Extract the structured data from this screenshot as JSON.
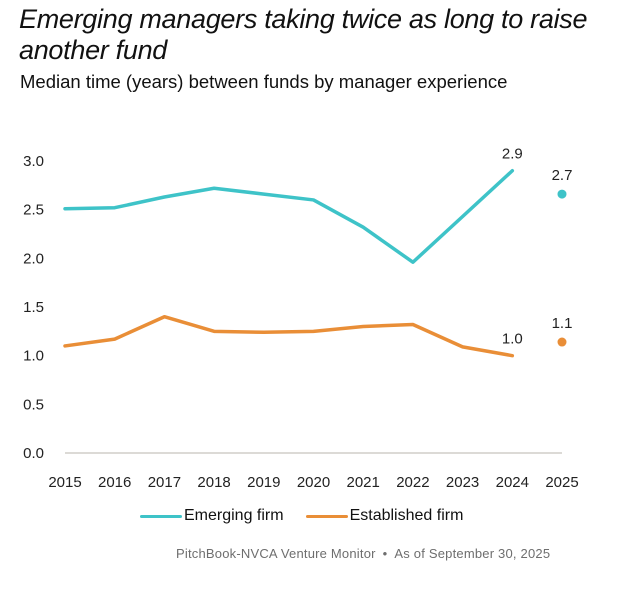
{
  "header": {
    "title": "Emerging managers taking twice as long to raise another fund",
    "subtitle": "Median time (years) between funds by manager experience"
  },
  "footer": {
    "source": "PitchBook-NVCA Venture Monitor",
    "separator": "•",
    "as_of": "As of September 30, 2025"
  },
  "colors": {
    "emerging": "#3EC3C8",
    "established": "#E98E37",
    "axis": "#b9b4ac"
  },
  "chart_data": {
    "type": "line",
    "title": "Emerging managers taking twice as long to raise another fund",
    "subtitle": "Median time (years) between funds by manager experience",
    "xlabel": "",
    "ylabel": "",
    "categories": [
      "2015",
      "2016",
      "2017",
      "2018",
      "2019",
      "2020",
      "2021",
      "2022",
      "2023",
      "2024",
      "2025"
    ],
    "yticks": [
      "0.0",
      "0.5",
      "1.0",
      "1.5",
      "2.0",
      "2.5",
      "3.0"
    ],
    "ylim": [
      0,
      3.0
    ],
    "grid": false,
    "legend_position": "bottom",
    "series": [
      {
        "name": "Emerging firm",
        "color": "#3EC3C8",
        "values": [
          2.51,
          2.52,
          2.63,
          2.72,
          2.66,
          2.6,
          2.32,
          1.96,
          2.43,
          2.9,
          2.66
        ],
        "line_through": 10,
        "standalone_point_index": 10,
        "data_labels": [
          {
            "index": 9,
            "text": "2.9"
          },
          {
            "index": 10,
            "text": "2.7"
          }
        ]
      },
      {
        "name": "Established firm",
        "color": "#E98E37",
        "values": [
          1.1,
          1.17,
          1.4,
          1.25,
          1.24,
          1.25,
          1.3,
          1.32,
          1.09,
          1.0,
          1.14
        ],
        "line_through": 10,
        "standalone_point_index": 10,
        "data_labels": [
          {
            "index": 9,
            "text": "1.0"
          },
          {
            "index": 10,
            "text": "1.1"
          }
        ]
      }
    ]
  }
}
